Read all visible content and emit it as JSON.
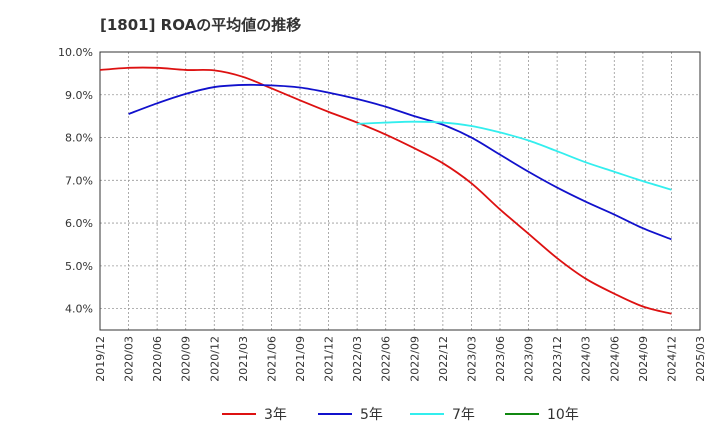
{
  "chart_data": {
    "type": "line",
    "title": "[1801]  ROAの平均値の推移",
    "xlabel": "",
    "ylabel": "",
    "ylim": [
      3.5,
      10.0
    ],
    "grid": true,
    "legend_position": "bottom",
    "y_ticks": [
      "4.0%",
      "5.0%",
      "6.0%",
      "7.0%",
      "8.0%",
      "9.0%",
      "10.0%"
    ],
    "y_tick_values": [
      4.0,
      5.0,
      6.0,
      7.0,
      8.0,
      9.0,
      10.0
    ],
    "categories": [
      "2019/12",
      "2020/03",
      "2020/06",
      "2020/09",
      "2020/12",
      "2021/03",
      "2021/06",
      "2021/09",
      "2021/12",
      "2022/03",
      "2022/06",
      "2022/09",
      "2022/12",
      "2023/03",
      "2023/06",
      "2023/09",
      "2023/12",
      "2024/03",
      "2024/06",
      "2024/09",
      "2024/12",
      "2025/03"
    ],
    "series": [
      {
        "name": "3年",
        "color": "#dd1111",
        "values": [
          9.58,
          9.63,
          9.63,
          9.58,
          9.57,
          9.42,
          9.15,
          8.87,
          8.6,
          8.35,
          8.07,
          7.75,
          7.4,
          6.93,
          6.32,
          5.75,
          5.18,
          4.7,
          4.35,
          4.05,
          3.88,
          null
        ]
      },
      {
        "name": "5年",
        "color": "#1111cc",
        "values": [
          null,
          8.55,
          8.8,
          9.02,
          9.18,
          9.23,
          9.22,
          9.17,
          9.05,
          8.9,
          8.72,
          8.5,
          8.3,
          8.0,
          7.6,
          7.2,
          6.83,
          6.5,
          6.2,
          5.88,
          5.62,
          null
        ]
      },
      {
        "name": "7年",
        "color": "#33eeee",
        "values": [
          null,
          null,
          null,
          null,
          null,
          null,
          null,
          null,
          null,
          8.32,
          8.35,
          8.37,
          8.35,
          8.27,
          8.12,
          7.93,
          7.68,
          7.42,
          7.2,
          6.98,
          6.78,
          null
        ]
      },
      {
        "name": "10年",
        "color": "#118811",
        "values": [
          null,
          null,
          null,
          null,
          null,
          null,
          null,
          null,
          null,
          null,
          null,
          null,
          null,
          null,
          null,
          null,
          null,
          null,
          null,
          null,
          null,
          null
        ]
      }
    ]
  }
}
